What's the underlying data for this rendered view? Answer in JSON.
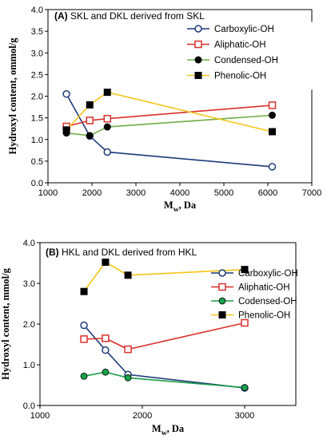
{
  "chart_data": [
    {
      "type": "line",
      "panel_label": "(A)",
      "title": "SKL and DKL derived from SKL",
      "xlabel": "M",
      "xlabel_sub": "w",
      "xlabel_unit": ", Da",
      "ylabel": "Hydroxyl content, ommol/g",
      "xlim": [
        1000,
        7000
      ],
      "ylim": [
        0.0,
        4.0
      ],
      "xticks": [
        "1000",
        "2000",
        "3000",
        "4000",
        "5000",
        "6000",
        "7000"
      ],
      "yticks": [
        "0.0",
        "0.5",
        "1.0",
        "1.5",
        "2.0",
        "2.5",
        "3.0",
        "3.5",
        "4.0"
      ],
      "legend_position": "top-right",
      "series": [
        {
          "name": "Carboxylic-OH",
          "color": "#1F3A7A",
          "marker": "circle-open",
          "x": [
            1420,
            1950,
            2350,
            6100
          ],
          "y": [
            2.05,
            1.08,
            0.71,
            0.37
          ]
        },
        {
          "name": "Aliphatic-OH",
          "color": "#D9302C",
          "marker": "square-open",
          "x": [
            1420,
            1950,
            2350,
            6100
          ],
          "y": [
            1.3,
            1.44,
            1.48,
            1.79
          ]
        },
        {
          "name": "Condensed-OH",
          "color": "#70AD47",
          "marker": "circle-filled",
          "x": [
            1420,
            1950,
            2350,
            6100
          ],
          "y": [
            1.15,
            1.09,
            1.29,
            1.56
          ]
        },
        {
          "name": "Phenolic-OH",
          "color": "#F5C518",
          "marker": "square-filled",
          "x": [
            1420,
            1950,
            2350,
            6100
          ],
          "y": [
            1.22,
            1.8,
            2.09,
            1.18
          ]
        }
      ]
    },
    {
      "type": "line",
      "panel_label": "(B)",
      "title": "HKL and DKL derived from HKL",
      "xlabel": "M",
      "xlabel_sub": "w",
      "xlabel_unit": ", Da",
      "ylabel": "Hydroxyl content, mmol/g",
      "xlim": [
        1000,
        3500
      ],
      "ylim": [
        0.0,
        4.0
      ],
      "xticks": [
        "1000",
        "2000",
        "3000"
      ],
      "yticks": [
        "0.0",
        "1.0",
        "2.0",
        "3.0",
        "4.0"
      ],
      "legend_position": "right",
      "series": [
        {
          "name": "Carboxylic-OH",
          "color": "#1F3A7A",
          "marker": "circle-open",
          "x": [
            1430,
            1640,
            1860,
            3000
          ],
          "y": [
            1.97,
            1.36,
            0.76,
            0.43
          ]
        },
        {
          "name": "Aliphatic-OH",
          "color": "#D9302C",
          "marker": "square-open",
          "x": [
            1430,
            1640,
            1860,
            3000
          ],
          "y": [
            1.63,
            1.65,
            1.38,
            2.03
          ]
        },
        {
          "name": "Codensed-OH",
          "color": "#1A9E4A",
          "marker": "circle-filled",
          "x": [
            1430,
            1640,
            1860,
            3000
          ],
          "y": [
            0.72,
            0.82,
            0.68,
            0.44
          ]
        },
        {
          "name": "Phenolic-OH",
          "color": "#F5C518",
          "marker": "square-filled",
          "x": [
            1430,
            1640,
            1860,
            3000
          ],
          "y": [
            2.8,
            3.52,
            3.2,
            3.34
          ]
        }
      ]
    }
  ]
}
